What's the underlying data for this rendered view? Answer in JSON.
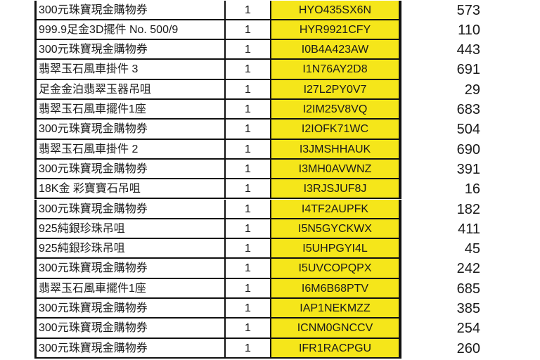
{
  "colors": {
    "code_highlight": "#f5e61a",
    "border": "#111111"
  },
  "rows": [
    {
      "name": "300元珠寶現金購物券",
      "qty": "1",
      "code": "HYO435SX6N",
      "number": "573"
    },
    {
      "name": "999.9足金3D擺件 No. 500/9",
      "qty": "1",
      "code": "HYR9921CFY",
      "number": "110"
    },
    {
      "name": "300元珠寶現金購物券",
      "qty": "1",
      "code": "I0B4A423AW",
      "number": "443"
    },
    {
      "name": "翡翠玉石風車掛件 3",
      "qty": "1",
      "code": "I1N76AY2D8",
      "number": "691"
    },
    {
      "name": "足金金泊翡翠玉器吊咀",
      "qty": "1",
      "code": "I27L2PY0V7",
      "number": "29"
    },
    {
      "name": "翡翠玉石風車擺件1座",
      "qty": "1",
      "code": "I2IM25V8VQ",
      "number": "683"
    },
    {
      "name": "300元珠寶現金購物券",
      "qty": "1",
      "code": "I2IOFK71WC",
      "number": "504"
    },
    {
      "name": "翡翠玉石風車掛件 2",
      "qty": "1",
      "code": "I3JMSHHAUK",
      "number": "690"
    },
    {
      "name": "300元珠寶現金購物券",
      "qty": "1",
      "code": "I3MH0AVWNZ",
      "number": "391"
    },
    {
      "name": "18K金 彩寶寶石吊咀",
      "qty": "1",
      "code": "I3RJSJUF8J",
      "number": "16"
    },
    {
      "name": "300元珠寶現金購物券",
      "qty": "1",
      "code": "I4TF2AUPFK",
      "number": "182"
    },
    {
      "name": "925純銀珍珠吊咀",
      "qty": "1",
      "code": "I5N5GYCKWX",
      "number": "411"
    },
    {
      "name": "925純銀珍珠吊咀",
      "qty": "1",
      "code": "I5UHPGYI4L",
      "number": "45"
    },
    {
      "name": "300元珠寶現金購物券",
      "qty": "1",
      "code": "I5UVCOPQPX",
      "number": "242"
    },
    {
      "name": "翡翠玉石風車擺件1座",
      "qty": "1",
      "code": "I6M6B68PTV",
      "number": "685"
    },
    {
      "name": "300元珠寶現金購物券",
      "qty": "1",
      "code": "IAP1NEKMZZ",
      "number": "385"
    },
    {
      "name": "300元珠寶現金購物券",
      "qty": "1",
      "code": "ICNM0GNCCV",
      "number": "254"
    },
    {
      "name": "300元珠寶現金購物券",
      "qty": "1",
      "code": "IFR1RACPGU",
      "number": "260"
    }
  ]
}
